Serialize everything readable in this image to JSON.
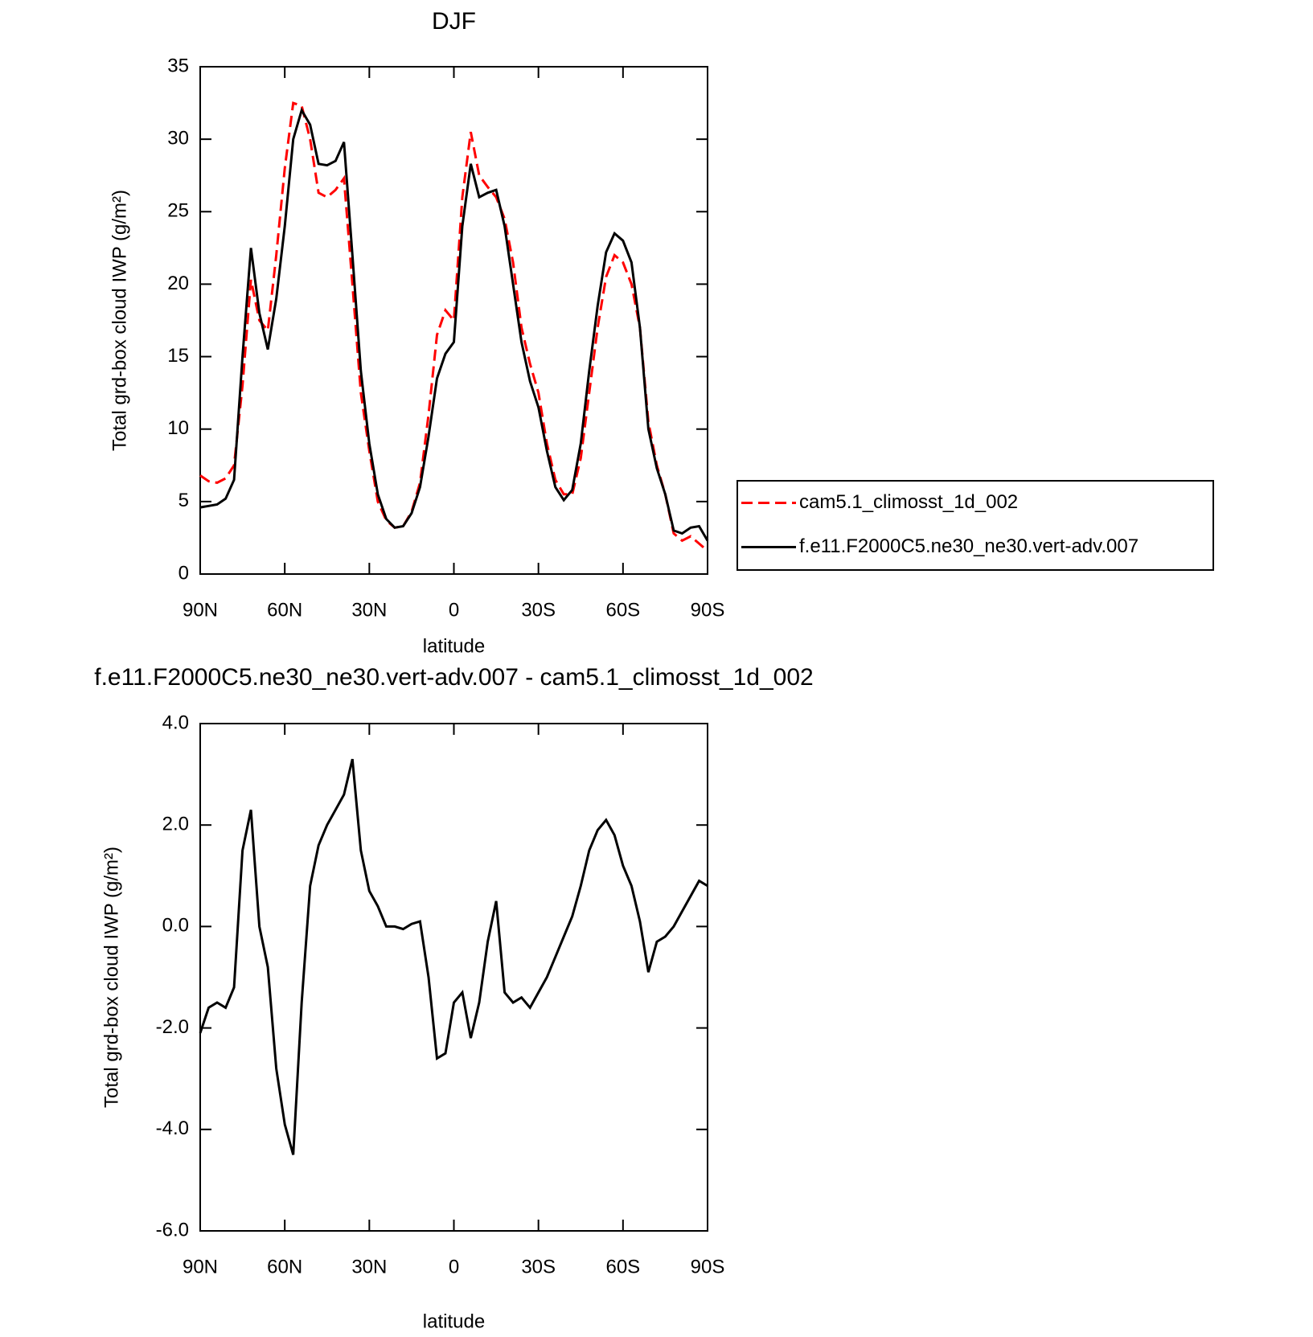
{
  "chart_data": [
    {
      "type": "line",
      "title": "DJF",
      "xlabel": "latitude",
      "ylabel": "Total grd-box cloud IWP (g/m²)",
      "x": [
        90,
        87,
        84,
        81,
        78,
        75,
        72,
        69,
        66,
        63,
        60,
        57,
        54,
        51,
        48,
        45,
        42,
        39,
        36,
        33,
        30,
        27,
        24,
        21,
        18,
        15,
        12,
        9,
        6,
        3,
        0,
        -3,
        -6,
        -9,
        -12,
        -15,
        -18,
        -21,
        -24,
        -27,
        -30,
        -33,
        -36,
        -39,
        -42,
        -45,
        -48,
        -51,
        -54,
        -57,
        -60,
        -63,
        -66,
        -69,
        -72,
        -75,
        -78,
        -81,
        -84,
        -87,
        -90
      ],
      "xlim": [
        90,
        -90
      ],
      "xticks": [
        {
          "value": 90,
          "label": "90N"
        },
        {
          "value": 60,
          "label": "60N"
        },
        {
          "value": 30,
          "label": "30N"
        },
        0,
        {
          "value": -30,
          "label": "30S"
        },
        {
          "value": -60,
          "label": "60S"
        },
        {
          "value": -90,
          "label": "90S"
        }
      ],
      "ylim": [
        0,
        35
      ],
      "yticks": [
        0,
        5,
        10,
        15,
        20,
        25,
        30,
        35
      ],
      "legend": "right",
      "series": [
        {
          "name": "cam5.1_climosst_1d_002",
          "color": "#ff0000",
          "linestyle": "dashed",
          "values": [
            6.8,
            6.4,
            6.3,
            6.6,
            7.5,
            13,
            20.3,
            17.5,
            16.8,
            22,
            28,
            32.5,
            32.3,
            30,
            26.3,
            26,
            26.5,
            27.3,
            20,
            12.5,
            8.5,
            5,
            3.7,
            3.2,
            3.3,
            4.3,
            6.3,
            11,
            16.5,
            18.2,
            17.5,
            26,
            30.5,
            27.5,
            26.7,
            26,
            24.5,
            21.5,
            17,
            14.5,
            12.5,
            9,
            6.5,
            5.5,
            5.5,
            8,
            12.5,
            17,
            20.5,
            22,
            21.5,
            20,
            17,
            10.5,
            7.5,
            5.5,
            2.8,
            2.3,
            2.6,
            2.1,
            1.6
          ]
        },
        {
          "name": "f.e11.F2000C5.ne30_ne30.vert-adv.007",
          "color": "#000000",
          "linestyle": "solid",
          "values": [
            4.6,
            4.7,
            4.8,
            5.2,
            6.5,
            15,
            22.5,
            18,
            15.5,
            19,
            24,
            30,
            32,
            31,
            28.3,
            28.2,
            28.5,
            29.8,
            22,
            14,
            9,
            5.5,
            3.8,
            3.2,
            3.3,
            4.2,
            6,
            9.5,
            13.5,
            15.2,
            16,
            24,
            28.3,
            26,
            26.3,
            26.5,
            24,
            20,
            16,
            13.3,
            11.5,
            8.5,
            6,
            5.1,
            5.8,
            9,
            14,
            18.5,
            22.2,
            23.5,
            23,
            21.5,
            17,
            10,
            7.3,
            5.5,
            3,
            2.8,
            3.2,
            3.3,
            2.3
          ]
        }
      ]
    },
    {
      "type": "line",
      "title": "f.e11.F2000C5.ne30_ne30.vert-adv.007 - cam5.1_climosst_1d_002",
      "xlabel": "latitude",
      "ylabel": "Total grd-box cloud IWP (g/m²)",
      "x": [
        90,
        87,
        84,
        81,
        78,
        75,
        72,
        69,
        66,
        63,
        60,
        57,
        54,
        51,
        48,
        45,
        42,
        39,
        36,
        33,
        30,
        27,
        24,
        21,
        18,
        15,
        12,
        9,
        6,
        3,
        0,
        -3,
        -6,
        -9,
        -12,
        -15,
        -18,
        -21,
        -24,
        -27,
        -30,
        -33,
        -36,
        -39,
        -42,
        -45,
        -48,
        -51,
        -54,
        -57,
        -60,
        -63,
        -66,
        -69,
        -72,
        -75,
        -78,
        -81,
        -84,
        -87,
        -90
      ],
      "xlim": [
        90,
        -90
      ],
      "xticks": [
        {
          "value": 90,
          "label": "90N"
        },
        {
          "value": 60,
          "label": "60N"
        },
        {
          "value": 30,
          "label": "30N"
        },
        0,
        {
          "value": -30,
          "label": "30S"
        },
        {
          "value": -60,
          "label": "60S"
        },
        {
          "value": -90,
          "label": "90S"
        }
      ],
      "ylim": [
        -6,
        4
      ],
      "yticks": [
        {
          "value": -6,
          "label": "-6.0"
        },
        {
          "value": -4,
          "label": "-4.0"
        },
        {
          "value": -2,
          "label": "-2.0"
        },
        {
          "value": 0,
          "label": "0.0"
        },
        {
          "value": 2,
          "label": "2.0"
        },
        {
          "value": 4,
          "label": "4.0"
        }
      ],
      "series": [
        {
          "color": "#000000",
          "linestyle": "solid",
          "values": [
            -2.1,
            -1.6,
            -1.5,
            -1.6,
            -1.2,
            1.5,
            2.3,
            0,
            -0.8,
            -2.8,
            -3.9,
            -4.5,
            -1.5,
            0.8,
            1.6,
            2.0,
            2.3,
            2.6,
            3.3,
            1.5,
            0.7,
            0.4,
            0,
            0,
            -0.05,
            0.05,
            0.1,
            -1.0,
            -2.6,
            -2.5,
            -1.5,
            -1.3,
            -2.2,
            -1.5,
            -0.3,
            0.5,
            -1.3,
            -1.5,
            -1.4,
            -1.6,
            -1.3,
            -1.0,
            -0.6,
            -0.2,
            0.2,
            0.8,
            1.5,
            1.9,
            2.1,
            1.8,
            1.2,
            0.8,
            0.1,
            -0.9,
            -0.3,
            -0.2,
            0,
            0.3,
            0.6,
            0.9,
            0.8
          ]
        }
      ]
    }
  ]
}
